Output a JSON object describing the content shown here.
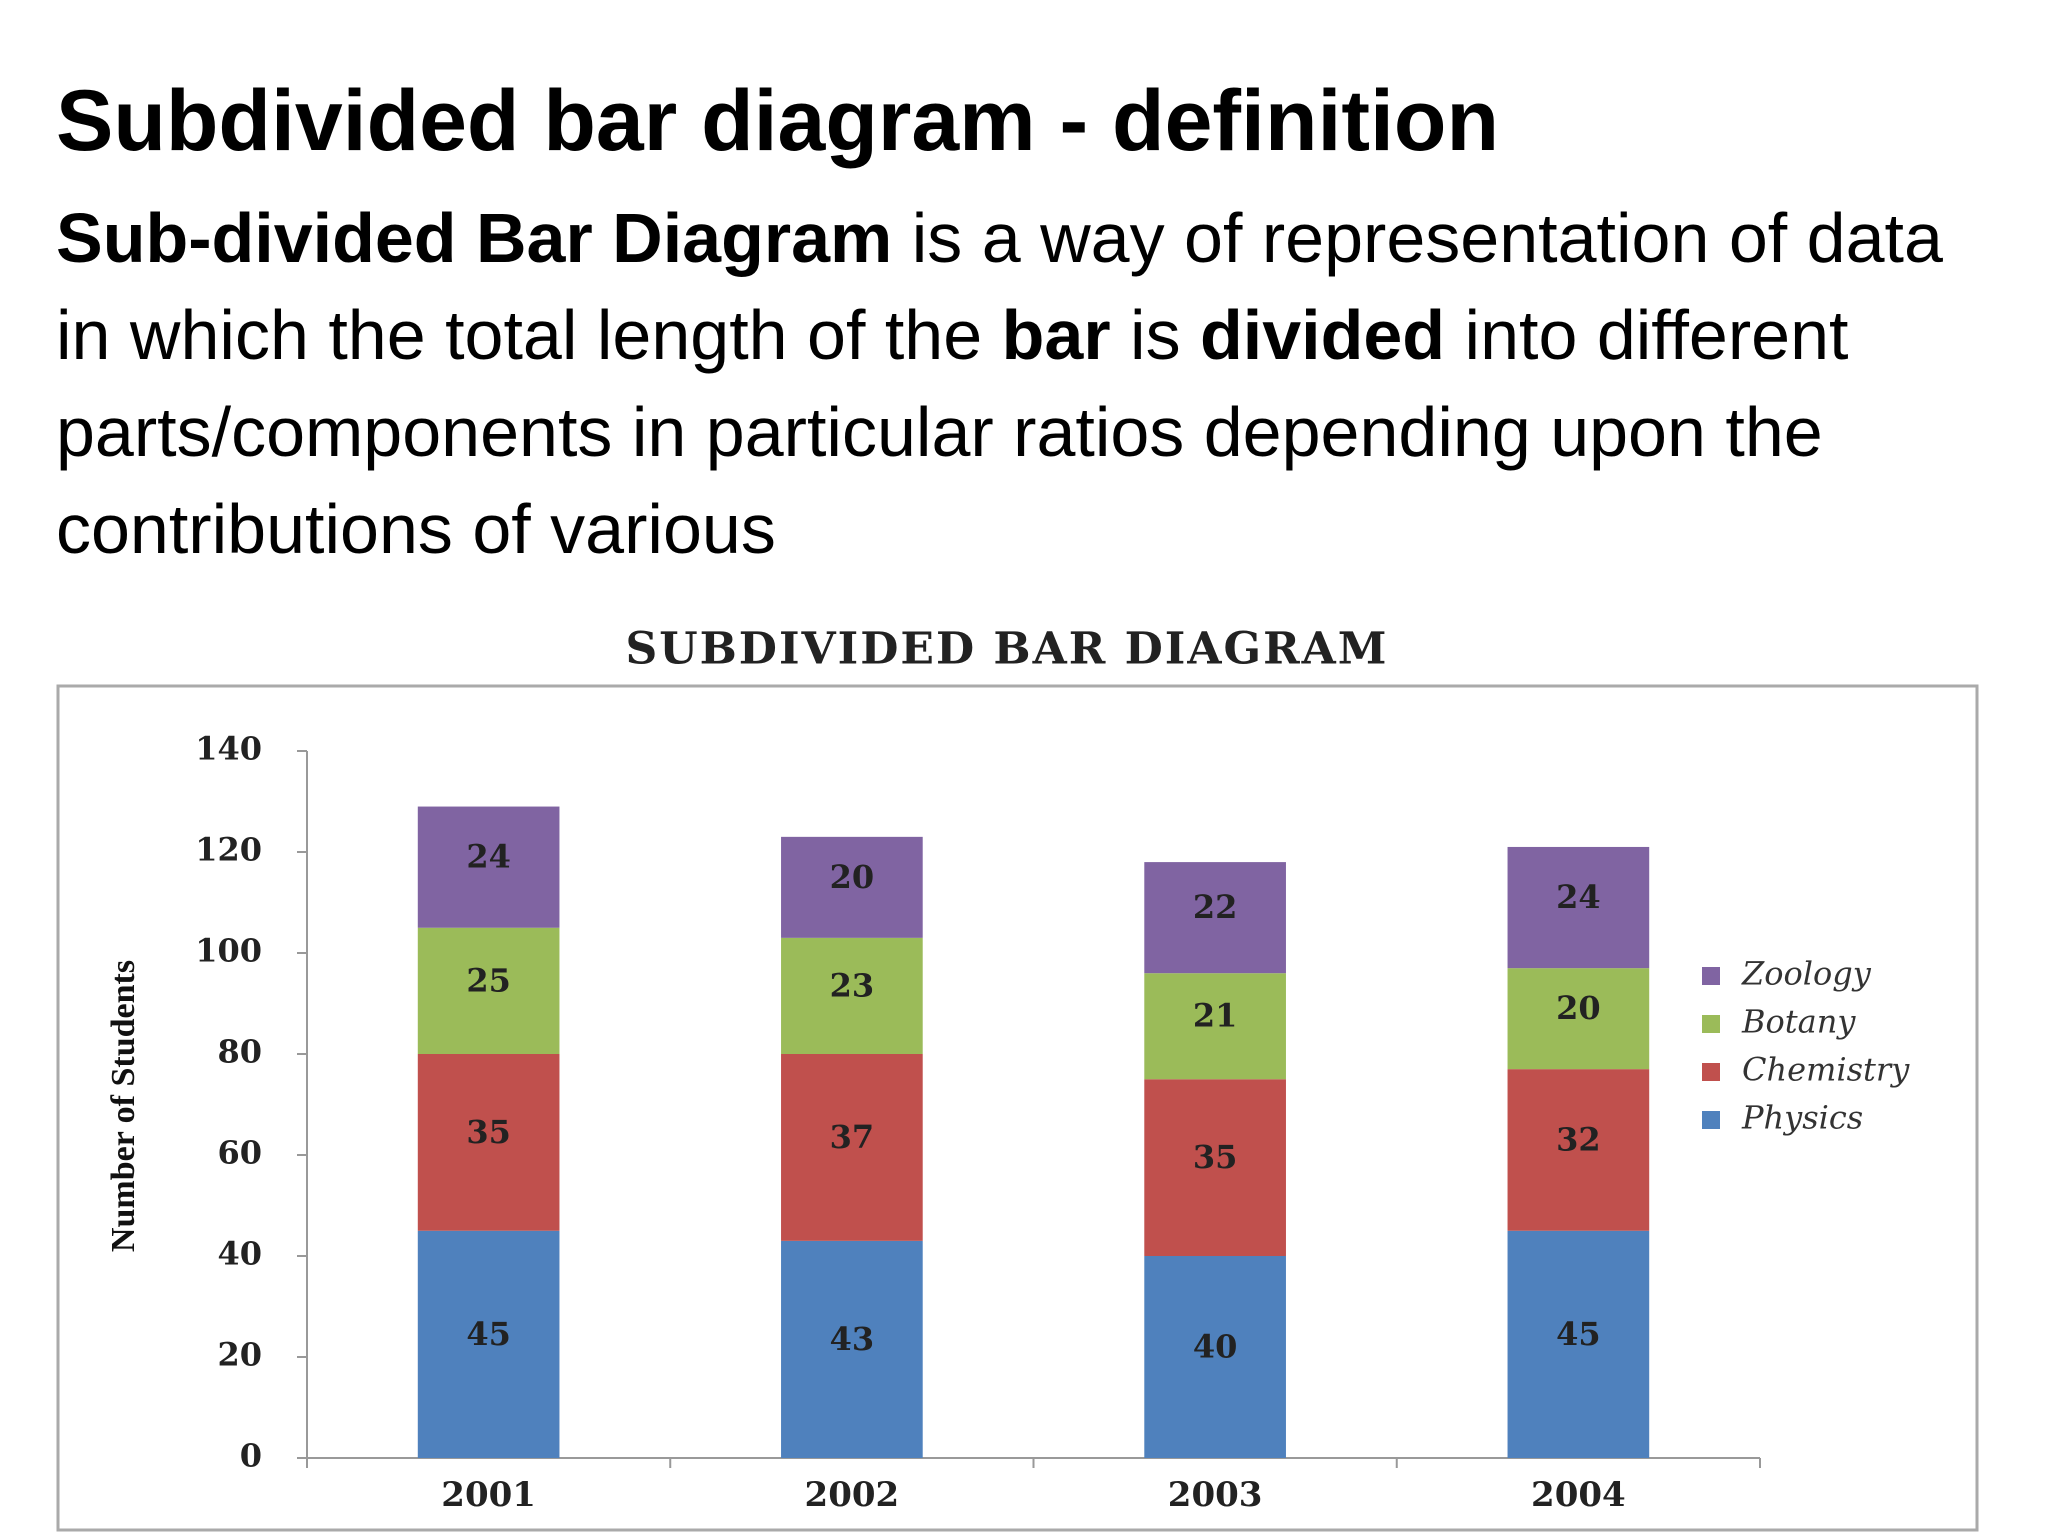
{
  "slide": {
    "title": "Subdivided bar diagram - definition",
    "paragraph": [
      {
        "text": "Sub-divided Bar Diagram",
        "bold": true
      },
      {
        "text": " is a way of representation of data in which the total length of the ",
        "bold": false
      },
      {
        "text": "bar",
        "bold": true
      },
      {
        "text": " is ",
        "bold": false
      },
      {
        "text": "divided",
        "bold": true
      },
      {
        "text": " into different parts/components in particular ratios depending upon the contributions of various",
        "bold": false
      }
    ]
  },
  "chart_data": {
    "type": "stacked_bar",
    "title": "SUBDIVIDED BAR DIAGRAM",
    "y_label": "Number of Students",
    "categories": [
      "2001",
      "2002",
      "2003",
      "2004"
    ],
    "series": [
      {
        "name": "Physics",
        "color": "#4f81bd",
        "values": [
          45,
          43,
          40,
          45
        ]
      },
      {
        "name": "Chemistry",
        "color": "#c0504d",
        "values": [
          35,
          37,
          35,
          32
        ]
      },
      {
        "name": "Botany",
        "color": "#9bbb59",
        "values": [
          25,
          23,
          21,
          20
        ]
      },
      {
        "name": "Zoology",
        "color": "#8064a2",
        "values": [
          24,
          20,
          22,
          24
        ]
      }
    ],
    "ylim": [
      0,
      140
    ],
    "yticks": [
      0,
      20,
      40,
      60,
      80,
      100,
      120,
      140
    ],
    "legend": "right",
    "data_labels": true
  }
}
